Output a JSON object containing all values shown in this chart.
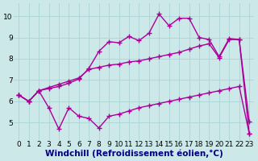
{
  "xlabel": "Windchill (Refroidissement éolien,°C)",
  "bg_color": "#cce8e8",
  "line_color": "#aa0099",
  "xlim": [
    -0.5,
    23.5
  ],
  "ylim": [
    4.2,
    10.6
  ],
  "xticks": [
    0,
    1,
    2,
    3,
    4,
    5,
    6,
    7,
    8,
    9,
    10,
    11,
    12,
    13,
    14,
    15,
    16,
    17,
    18,
    19,
    20,
    21,
    22,
    23
  ],
  "yticks": [
    5,
    6,
    7,
    8,
    9,
    10
  ],
  "line1_x": [
    0,
    1,
    2,
    3,
    4,
    5,
    6,
    7,
    8,
    9,
    10,
    11,
    12,
    13,
    14,
    15,
    16,
    17,
    18,
    19,
    20,
    21,
    22,
    23
  ],
  "line1_y": [
    6.3,
    6.0,
    6.5,
    5.7,
    4.7,
    5.7,
    5.3,
    5.2,
    4.75,
    5.3,
    5.4,
    5.55,
    5.7,
    5.8,
    5.9,
    6.0,
    6.1,
    6.2,
    6.3,
    6.4,
    6.5,
    6.6,
    6.7,
    4.5
  ],
  "line2_x": [
    0,
    1,
    2,
    3,
    4,
    5,
    6,
    7,
    8,
    9,
    10,
    11,
    12,
    13,
    14,
    15,
    16,
    17,
    18,
    19,
    20,
    21,
    22,
    23
  ],
  "line2_y": [
    6.3,
    6.0,
    6.5,
    6.6,
    6.7,
    6.85,
    7.05,
    7.55,
    8.35,
    8.8,
    8.75,
    9.05,
    8.85,
    9.2,
    10.1,
    9.55,
    9.9,
    9.9,
    9.0,
    8.9,
    8.1,
    8.95,
    8.9,
    5.05
  ],
  "line3_x": [
    0,
    1,
    2,
    3,
    4,
    5,
    6,
    7,
    8,
    9,
    10,
    11,
    12,
    13,
    14,
    15,
    16,
    17,
    18,
    19,
    20,
    21,
    22,
    23
  ],
  "line3_y": [
    6.3,
    6.0,
    6.5,
    6.65,
    6.8,
    6.95,
    7.1,
    7.5,
    7.6,
    7.7,
    7.75,
    7.85,
    7.9,
    8.0,
    8.1,
    8.2,
    8.3,
    8.45,
    8.6,
    8.7,
    8.05,
    8.9,
    8.9,
    4.5
  ],
  "marker": "+",
  "markersize": 4,
  "linewidth": 1.0,
  "xlabel_fontsize": 7.5,
  "tick_fontsize": 6.5,
  "grid_color": "#aad4d4",
  "grid_lw": 0.6
}
